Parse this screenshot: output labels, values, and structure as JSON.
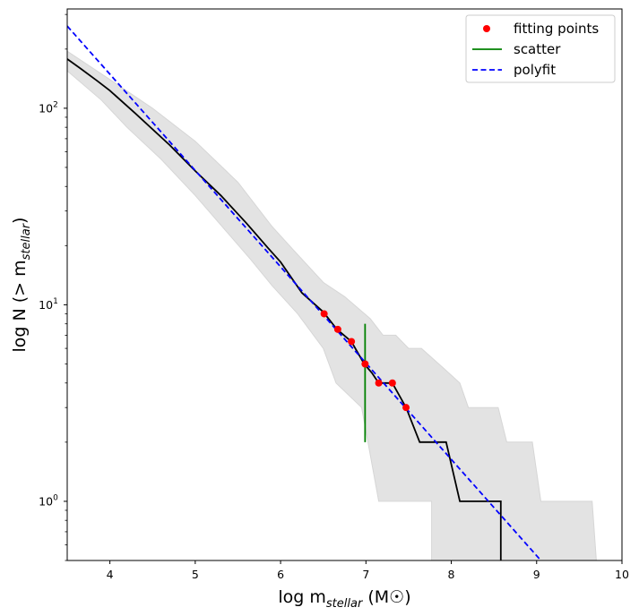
{
  "chart_data": {
    "type": "line",
    "xlabel": "log m_stellar (M☉)",
    "ylabel": "log N (> m_stellar)",
    "xlim": [
      3.5,
      10.0
    ],
    "ylim": [
      0.5,
      320
    ],
    "yscale": "log",
    "x_ticks": [
      4,
      5,
      6,
      7,
      8,
      9,
      10
    ],
    "y_ticks": [
      {
        "value": 1,
        "label": "10^0"
      },
      {
        "value": 10,
        "label": "10^1"
      },
      {
        "value": 100,
        "label": "10^2"
      }
    ],
    "legend_position": "top-right",
    "legend": [
      {
        "label": "fitting points",
        "kind": "marker",
        "color": "#ff0000"
      },
      {
        "label": "scatter",
        "kind": "line",
        "color": "#008000"
      },
      {
        "label": "polyfit",
        "kind": "dashed",
        "color": "#0000ff"
      }
    ],
    "band_upper": [
      [
        3.5,
        195
      ],
      [
        4.0,
        140
      ],
      [
        4.5,
        100
      ],
      [
        5.0,
        68
      ],
      [
        5.5,
        42
      ],
      [
        5.9,
        25
      ],
      [
        6.15,
        19
      ],
      [
        6.5,
        13
      ],
      [
        6.75,
        11
      ],
      [
        7.05,
        8.5
      ],
      [
        7.2,
        7
      ],
      [
        7.35,
        7
      ],
      [
        7.5,
        6
      ],
      [
        7.65,
        6
      ],
      [
        7.9,
        4.8
      ],
      [
        8.1,
        4
      ],
      [
        8.2,
        3
      ],
      [
        8.55,
        3
      ],
      [
        8.65,
        2
      ],
      [
        8.95,
        2
      ],
      [
        9.05,
        1
      ],
      [
        9.65,
        1
      ],
      [
        9.7,
        0.5
      ]
    ],
    "band_lower": [
      [
        7.77,
        0.5
      ],
      [
        7.77,
        1
      ],
      [
        7.15,
        1
      ],
      [
        6.95,
        3
      ],
      [
        6.65,
        4
      ],
      [
        6.5,
        6
      ],
      [
        6.2,
        9
      ],
      [
        5.9,
        12.5
      ],
      [
        5.65,
        17
      ],
      [
        5.35,
        24
      ],
      [
        5.0,
        36
      ],
      [
        4.6,
        55
      ],
      [
        4.2,
        80
      ],
      [
        3.9,
        110
      ],
      [
        3.5,
        155
      ]
    ],
    "series": [
      {
        "name": "",
        "color": "#000000",
        "style": "solid",
        "points": [
          [
            3.5,
            178
          ],
          [
            3.65,
            160
          ],
          [
            3.85,
            138
          ],
          [
            4.0,
            123
          ],
          [
            4.3,
            94
          ],
          [
            4.7,
            65
          ],
          [
            5.0,
            48
          ],
          [
            5.3,
            36
          ],
          [
            5.6,
            26
          ],
          [
            5.85,
            19.5
          ],
          [
            6.0,
            16.5
          ],
          [
            6.25,
            11.5
          ],
          [
            6.5,
            9.2
          ],
          [
            6.66,
            7.5
          ],
          [
            6.83,
            6.5
          ],
          [
            6.98,
            5.0
          ],
          [
            7.07,
            4.5
          ],
          [
            7.15,
            4.0
          ],
          [
            7.31,
            4.0
          ],
          [
            7.47,
            3.0
          ],
          [
            7.63,
            2.0
          ],
          [
            7.94,
            2.0
          ],
          [
            8.1,
            1.0
          ],
          [
            8.58,
            1.0
          ],
          [
            8.58,
            0.5
          ]
        ]
      },
      {
        "name": "polyfit",
        "color": "#0000ff",
        "style": "dashed",
        "points": [
          [
            3.5,
            262
          ],
          [
            9.05,
            0.5
          ]
        ]
      }
    ],
    "fitting_points": {
      "name": "fitting points",
      "color": "#ff0000",
      "points": [
        [
          6.51,
          9.0
        ],
        [
          6.67,
          7.5
        ],
        [
          6.83,
          6.5
        ],
        [
          6.99,
          5.0
        ],
        [
          7.15,
          4.0
        ],
        [
          7.31,
          4.0
        ],
        [
          7.47,
          3.0
        ]
      ]
    },
    "scatter": {
      "name": "scatter",
      "color": "#008000",
      "x": 6.99,
      "y_range": [
        2.0,
        8.0
      ]
    }
  }
}
